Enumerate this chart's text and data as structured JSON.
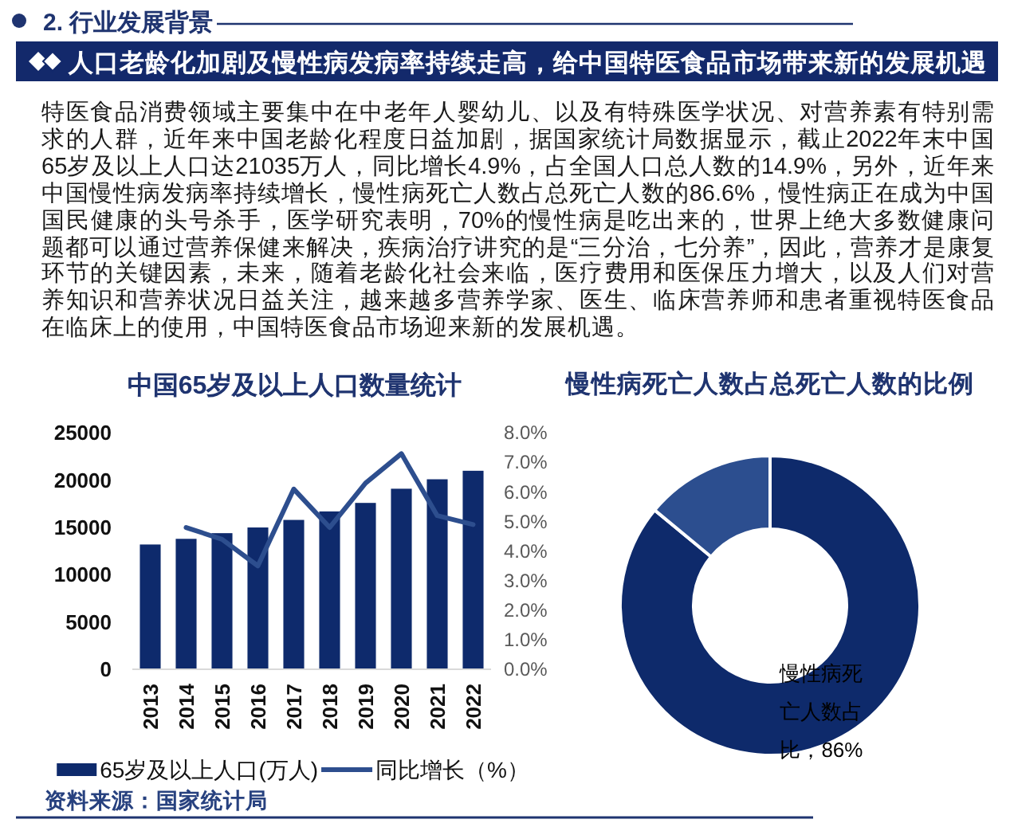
{
  "chart_data": [
    {
      "type": "other",
      "title": "人口老龄化加剧及慢性病发病率持续走高，给中国特医食品市场带来新的发展机遇",
      "annotations": [
        "2. 行业发展背景",
        "特医食品消费领域主要集中在中老年人婴幼儿、以及有特殊医学状况、对营养素有特别需求的人群，近年来中国老龄化程度日益加剧，据国家统计局数据显示，截止2022年末中国65岁及以上人口达21035万人，同比增长4.9%，占全国人口总人数的14.9%，另外，近年来中国慢性病发病率持续增长，慢性病死亡人数占总死亡人数的86.6%，慢性病正在成为中国国民健康的头号杀手，医学研究表明，70%的慢性病是吃出来的，世界上绝大多数健康问题都可以通过营养保健来解决，疾病治疗讲究的是“三分治，七分养”，因此，营养才是康复环节的关键因素，未来，随着老龄化社会来临，医疗费用和医保压力增大，以及人们对营养知识和营养状况日益关注，越来越多营养学家、医生、临床营养师和患者重视特医食品在临床上的使用，中国特医食品市场迎来新的发展机遇。"
      ]
    },
    {
      "type": "bar",
      "title": "中国65岁及以上人口数量统计",
      "categories": [
        "2013",
        "2014",
        "2015",
        "2016",
        "2017",
        "2018",
        "2019",
        "2020",
        "2021",
        "2022"
      ],
      "series": [
        {
          "name": "65岁及以上人口(万人)",
          "type": "bar",
          "color": "#0e2a6c",
          "values": [
            13200,
            13800,
            14400,
            15000,
            15800,
            16700,
            17600,
            19100,
            20100,
            21000
          ]
        },
        {
          "name": "同比增长（%）",
          "type": "line",
          "axis": "y2",
          "color": "#2d4e8e",
          "values": [
            null,
            4.8,
            4.4,
            3.5,
            6.1,
            4.8,
            6.3,
            7.3,
            5.2,
            4.9
          ]
        }
      ],
      "ylim": [
        0,
        25000
      ],
      "yticks": [
        0,
        5000,
        10000,
        15000,
        20000,
        25000
      ],
      "y2lim": [
        0,
        8
      ],
      "y2ticks": [
        {
          "value": 0,
          "label": "0.0%"
        },
        {
          "value": 1,
          "label": "1.0%"
        },
        {
          "value": 2,
          "label": "2.0%"
        },
        {
          "value": 3,
          "label": "3.0%"
        },
        {
          "value": 4,
          "label": "4.0%"
        },
        {
          "value": 5,
          "label": "5.0%"
        },
        {
          "value": 6,
          "label": "6.0%"
        },
        {
          "value": 7,
          "label": "7.0%"
        },
        {
          "value": 8,
          "label": "8.0%"
        }
      ],
      "legend": "bottom",
      "annotations": [
        "资料来源：国家统计局"
      ]
    },
    {
      "type": "donut",
      "title": "慢性病死亡人数占总死亡人数的比例",
      "categories": [
        null,
        null
      ],
      "values": [
        86,
        14
      ],
      "colors": [
        "#0e2a6b",
        "#2c4e8f"
      ],
      "value_labels": [
        "慢性病死亡人数占比，86%",
        null
      ]
    }
  ]
}
